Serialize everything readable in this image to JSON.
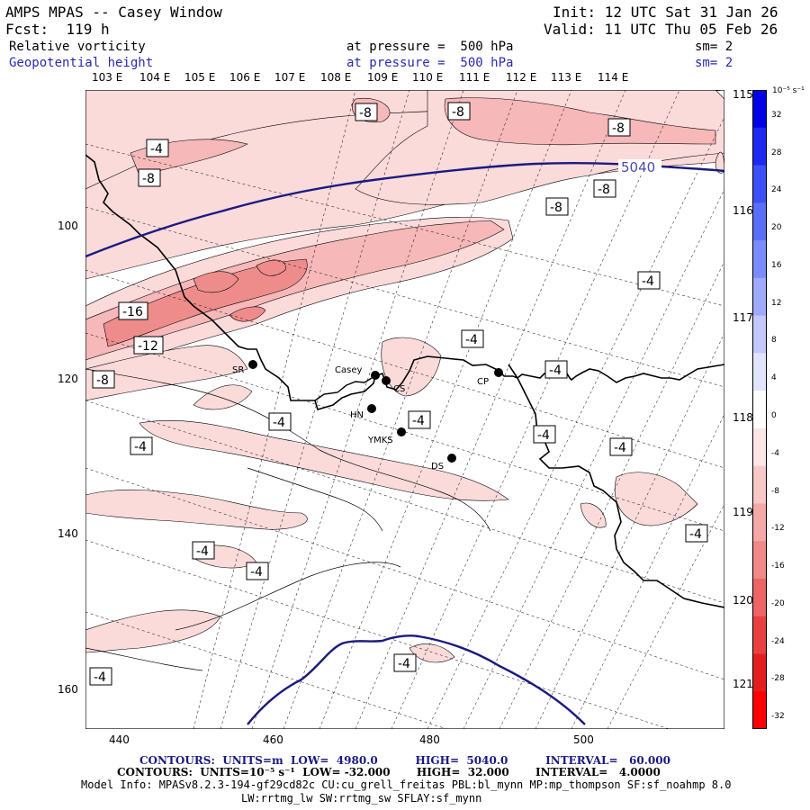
{
  "header": {
    "title": "AMPS MPAS -- Casey Window",
    "init": "Init: 12 UTC Sat 31 Jan 26",
    "forecast": "Fcst:  119 h",
    "valid": "Valid: 11 UTC Thu 05 Feb 26",
    "field1_name": "Relative vorticity",
    "field1_level": "at pressure =  500 hPa",
    "field1_smooth": "sm= 2",
    "field2_name": "Geopotential height",
    "field2_level": "at pressure =  500 hPa",
    "field2_smooth": "sm= 2"
  },
  "top_lon_labels": [
    "103 E",
    "104 E",
    "105 E",
    "106 E",
    "107 E",
    "108 E",
    "109 E",
    "110 E",
    "111 E",
    "112 E",
    "113 E",
    "114 E"
  ],
  "right_lon_labels": [
    "115 E",
    "116 E",
    "117 E",
    "118 E",
    "119 E",
    "120 E",
    "121 E"
  ],
  "left_axis_labels": [
    "100",
    "120",
    "140",
    "160"
  ],
  "bottom_axis_labels": [
    "440",
    "460",
    "480",
    "500"
  ],
  "stations": [
    {
      "name": "SR"
    },
    {
      "name": "Casey"
    },
    {
      "name": "CS"
    },
    {
      "name": "HN"
    },
    {
      "name": "YMKS"
    },
    {
      "name": "DS"
    },
    {
      "name": "CP"
    }
  ],
  "height_labels": [
    "5040"
  ],
  "vorticity_labels": [
    "-8",
    "-8",
    "-8",
    "-8",
    "-8",
    "-8",
    "-4",
    "-16",
    "-12",
    "-8",
    "-4",
    "-4",
    "-4",
    "-4",
    "-4",
    "-4",
    "-4",
    "-4",
    "-4",
    "-4",
    "-4",
    "-4",
    "-4"
  ],
  "colorbar": {
    "unit": "10⁻⁵ s⁻¹",
    "labels": [
      "32",
      "28",
      "24",
      "20",
      "16",
      "12",
      "8",
      "4",
      "0",
      "-4",
      "-8",
      "-12",
      "-16",
      "-20",
      "-24",
      "-28",
      "-32"
    ],
    "colors": [
      "#0000e6",
      "#1e28f0",
      "#3c50f5",
      "#5a6ef8",
      "#7b8cfa",
      "#a0aafc",
      "#c3c8fd",
      "#e2e4fe",
      "#ffffff",
      "#fce6e6",
      "#f8c8c8",
      "#f4a8a8",
      "#f08888",
      "#ec6464",
      "#e84040",
      "#e41e1e",
      "#ff0000"
    ]
  },
  "footer": {
    "contour1": "CONTOURS:  UNITS=m  LOW=  4980.0          HIGH=  5040.0          INTERVAL=   60.000",
    "contour2": "CONTOURS:  UNITS=10⁻⁵ s⁻¹  LOW= -32.000       HIGH=  32.000       INTERVAL=   4.0000",
    "model_info": "Model Info: MPASv8.2.3-194-gf29cd82c CU:cu_grell_freitas PBL:bl_mynn MP:mp_thompson SF:sf_noahmp 8.0",
    "model_info2": "LW:rrtmg_lw SW:rrtmg_sw SFLAY:sf_mynn"
  },
  "colors": {
    "height_contour": "#1a1a80",
    "vort_light": "#fbdada",
    "vort_med": "#f6b8b8",
    "vort_dark": "#ee8c8c"
  }
}
